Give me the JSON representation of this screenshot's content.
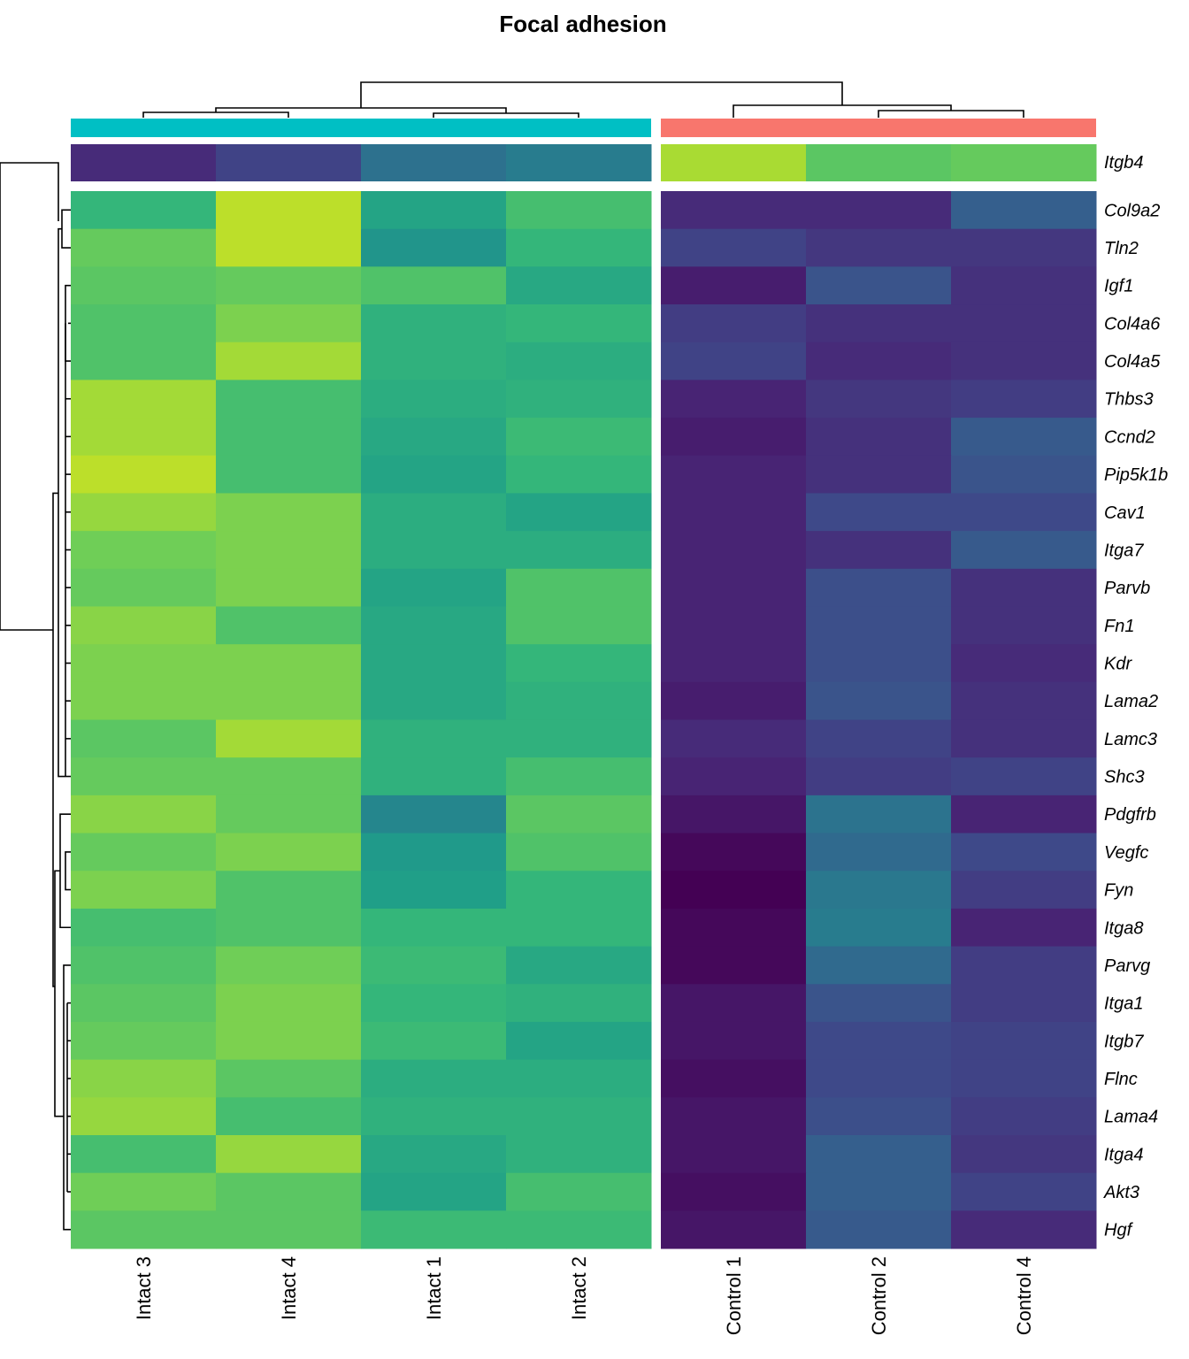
{
  "chart_data": {
    "type": "heatmap",
    "title": "Focal adhesion",
    "colormap": "viridis",
    "value_scale": "row-scaled relative expression, 0 = dark purple (#440154), 1 = yellow-green (#fde725)",
    "groups": [
      {
        "name": "Intact",
        "color": "#00bfc4",
        "columns": [
          "Intact 3",
          "Intact 4",
          "Intact 1",
          "Intact 2"
        ]
      },
      {
        "name": "Control",
        "color": "#f8766d",
        "columns": [
          "Control 1",
          "Control 2",
          "Control 4"
        ]
      }
    ],
    "columns": [
      "Intact 3",
      "Intact 4",
      "Intact 1",
      "Intact 2",
      "Control 1",
      "Control 2",
      "Control 4"
    ],
    "annotation_row": {
      "name": "Itgb4",
      "values": [
        0.12,
        0.2,
        0.37,
        0.42,
        0.87,
        0.74,
        0.76
      ]
    },
    "rows": [
      "Col9a2",
      "Tln2",
      "Igf1",
      "Col4a6",
      "Col4a5",
      "Thbs3",
      "Ccnd2",
      "Pip5k1b",
      "Cav1",
      "Itga7",
      "Parvb",
      "Fn1",
      "Kdr",
      "Lama2",
      "Lamc3",
      "Shc3",
      "Pdgfrb",
      "Vegfc",
      "Fyn",
      "Itga8",
      "Parvg",
      "Itga1",
      "Itgb7",
      "Flnc",
      "Lama4",
      "Itga4",
      "Akt3",
      "Hgf"
    ],
    "values": [
      [
        0.66,
        0.9,
        0.58,
        0.7,
        0.12,
        0.12,
        0.3
      ],
      [
        0.76,
        0.9,
        0.52,
        0.66,
        0.2,
        0.16,
        0.16
      ],
      [
        0.74,
        0.76,
        0.72,
        0.6,
        0.08,
        0.26,
        0.14
      ],
      [
        0.72,
        0.8,
        0.64,
        0.66,
        0.18,
        0.14,
        0.14
      ],
      [
        0.72,
        0.86,
        0.64,
        0.62,
        0.2,
        0.12,
        0.14
      ],
      [
        0.86,
        0.7,
        0.62,
        0.64,
        0.1,
        0.16,
        0.18
      ],
      [
        0.86,
        0.7,
        0.6,
        0.68,
        0.08,
        0.14,
        0.28
      ],
      [
        0.9,
        0.7,
        0.58,
        0.66,
        0.1,
        0.14,
        0.26
      ],
      [
        0.84,
        0.8,
        0.62,
        0.58,
        0.1,
        0.22,
        0.22
      ],
      [
        0.78,
        0.8,
        0.62,
        0.62,
        0.1,
        0.14,
        0.28
      ],
      [
        0.76,
        0.8,
        0.58,
        0.72,
        0.1,
        0.24,
        0.14
      ],
      [
        0.82,
        0.72,
        0.6,
        0.72,
        0.1,
        0.24,
        0.14
      ],
      [
        0.8,
        0.8,
        0.6,
        0.66,
        0.1,
        0.24,
        0.12
      ],
      [
        0.8,
        0.8,
        0.6,
        0.64,
        0.08,
        0.26,
        0.14
      ],
      [
        0.74,
        0.86,
        0.64,
        0.64,
        0.12,
        0.2,
        0.14
      ],
      [
        0.76,
        0.76,
        0.64,
        0.7,
        0.1,
        0.18,
        0.2
      ],
      [
        0.82,
        0.76,
        0.46,
        0.74,
        0.06,
        0.38,
        0.1
      ],
      [
        0.76,
        0.8,
        0.54,
        0.72,
        0.02,
        0.34,
        0.22
      ],
      [
        0.8,
        0.72,
        0.56,
        0.66,
        0.0,
        0.4,
        0.18
      ],
      [
        0.7,
        0.72,
        0.66,
        0.66,
        0.02,
        0.42,
        0.1
      ],
      [
        0.72,
        0.78,
        0.68,
        0.6,
        0.02,
        0.34,
        0.18
      ],
      [
        0.74,
        0.8,
        0.66,
        0.64,
        0.06,
        0.26,
        0.18
      ],
      [
        0.76,
        0.8,
        0.68,
        0.58,
        0.06,
        0.22,
        0.2
      ],
      [
        0.82,
        0.74,
        0.62,
        0.62,
        0.04,
        0.22,
        0.2
      ],
      [
        0.84,
        0.7,
        0.64,
        0.64,
        0.06,
        0.24,
        0.18
      ],
      [
        0.7,
        0.84,
        0.6,
        0.64,
        0.06,
        0.3,
        0.16
      ],
      [
        0.78,
        0.74,
        0.58,
        0.7,
        0.04,
        0.3,
        0.2
      ],
      [
        0.74,
        0.74,
        0.68,
        0.68,
        0.06,
        0.28,
        0.12
      ]
    ],
    "column_dendrogram": "((Intact 3, Intact 4), (Intact 1, Intact 2)), (Control 1, (Control 2, Control 4))",
    "row_dendrogram_side": "left",
    "legend": "none"
  }
}
